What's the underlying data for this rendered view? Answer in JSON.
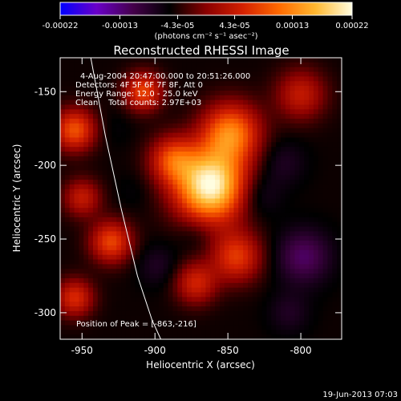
{
  "colorbar": {
    "tick_labels": [
      "-0.00022",
      "-0.00013",
      "-4.3e-05",
      "4.3e-05",
      "0.00013",
      "0.00022"
    ],
    "tick_values": [
      -0.00022,
      -0.00013,
      -4.3e-05,
      4.3e-05,
      0.00013,
      0.00022
    ],
    "range": [
      -0.00022,
      0.00022
    ],
    "unit_label": "(photons cm⁻² s⁻¹ asec⁻²)",
    "stops": [
      "#0000ff",
      "#6a00c8",
      "#44004a",
      "#000000",
      "#8a0000",
      "#d42000",
      "#ff6a00",
      "#ffb830",
      "#fffde0"
    ]
  },
  "chart_data": {
    "type": "heatmap",
    "title": "Reconstructed RHESSI Image",
    "xlabel": "Heliocentric X (arcsec)",
    "ylabel": "Heliocentric Y (arcsec)",
    "xlim": [
      -965,
      -772
    ],
    "ylim": [
      -318,
      -127
    ],
    "x_ticks": [
      -950,
      -900,
      -850,
      -800
    ],
    "x_tick_labels": [
      "-950",
      "-900",
      "-850",
      "-800"
    ],
    "y_ticks": [
      -150,
      -200,
      -250,
      -300
    ],
    "y_tick_labels": [
      "-150",
      "-200",
      "-250",
      "-300"
    ],
    "peak": {
      "x": -863,
      "y": -216,
      "value": 0.00022
    },
    "features": [
      {
        "x": -862,
        "y": -214,
        "value": 0.00022,
        "size": 17
      },
      {
        "x": -848,
        "y": -178,
        "value": 0.00012,
        "size": 14
      },
      {
        "x": -888,
        "y": -196,
        "value": 7e-05,
        "size": 11
      },
      {
        "x": -844,
        "y": -262,
        "value": 7e-05,
        "size": 12
      },
      {
        "x": -872,
        "y": -280,
        "value": 5e-05,
        "size": 10
      },
      {
        "x": -930,
        "y": -252,
        "value": 8e-05,
        "size": 10
      },
      {
        "x": -955,
        "y": -290,
        "value": 6e-05,
        "size": 9
      },
      {
        "x": -950,
        "y": -222,
        "value": 4e-05,
        "size": 9
      },
      {
        "x": -955,
        "y": -176,
        "value": 9e-05,
        "size": 10
      },
      {
        "x": -908,
        "y": -150,
        "value": 8e-05,
        "size": 9
      },
      {
        "x": -800,
        "y": -152,
        "value": 4e-05,
        "size": 12
      },
      {
        "x": -812,
        "y": -198,
        "value": -8e-05,
        "size": 11
      },
      {
        "x": -798,
        "y": -262,
        "value": -0.00012,
        "size": 13
      },
      {
        "x": -808,
        "y": -300,
        "value": -8e-05,
        "size": 10
      },
      {
        "x": -830,
        "y": -220,
        "value": -9e-05,
        "size": 11
      },
      {
        "x": -872,
        "y": -246,
        "value": -7e-05,
        "size": 9
      },
      {
        "x": -898,
        "y": -268,
        "value": -8e-05,
        "size": 10
      },
      {
        "x": -915,
        "y": -218,
        "value": -6e-05,
        "size": 9
      },
      {
        "x": -928,
        "y": -175,
        "value": -6e-05,
        "size": 9
      },
      {
        "x": -940,
        "y": -150,
        "value": -5e-05,
        "size": 9
      }
    ],
    "limb_curve": {
      "x": [
        -944,
        -934,
        -923,
        -912,
        -902,
        -896
      ],
      "y": [
        -127,
        -180,
        -230,
        -275,
        -305,
        -318
      ]
    }
  },
  "annotations": {
    "time": "4-Aug-2004 20:47:00.000 to 20:51:26.000",
    "detectors": "Detectors: 4F 5F 6F 7F 8F, Att 0",
    "energy": "Energy Range: 12.0 - 25.0 keV",
    "clean": "Clean    Total counts: 2.97E+03",
    "peak_label": "Position of Peak = [-863,-216]"
  },
  "footer": {
    "timestamp": "19-Jun-2013 07:03"
  }
}
